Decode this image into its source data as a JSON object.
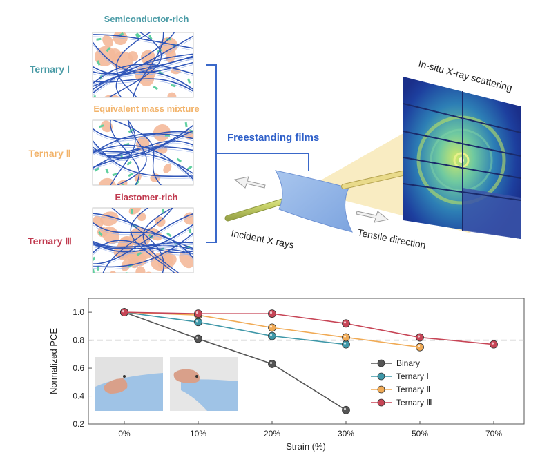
{
  "schematic": {
    "regime_labels": [
      "Semiconductor-rich",
      "Equivalent mass mixture",
      "Elastomer-rich"
    ],
    "ternary_labels": [
      "Ternary Ⅰ",
      "Ternary Ⅱ",
      "Ternary Ⅲ"
    ],
    "films_label": "Freestanding films",
    "xray_label": "In-situ X-ray scattering",
    "incident_label": "Incident X rays",
    "tensile_label": "Tensile direction",
    "colors": {
      "teal": "#4a9ba6",
      "orange": "#f2b36a",
      "red": "#c0394e",
      "blue": "#2e5fc9"
    }
  },
  "chart_data": {
    "type": "line",
    "categories": [
      "0%",
      "10%",
      "20%",
      "30%",
      "50%",
      "70%"
    ],
    "xlabel": "Strain (%)",
    "ylabel": "Normalized PCE",
    "ylim": [
      0.2,
      1.05
    ],
    "yticks": [
      "0.2",
      "0.4",
      "0.6",
      "0.8",
      "1.0"
    ],
    "reference_line": 0.8,
    "legend_placement": "lower-right",
    "series": [
      {
        "name": "Binary",
        "color": "#555555",
        "values": [
          1.0,
          0.81,
          0.63,
          0.3,
          null,
          null
        ]
      },
      {
        "name": "Ternary Ⅰ",
        "color": "#3e97a8",
        "values": [
          1.0,
          0.93,
          0.83,
          0.77,
          null,
          null
        ]
      },
      {
        "name": "Ternary Ⅱ",
        "color": "#f0aa55",
        "values": [
          1.0,
          0.98,
          0.89,
          0.82,
          0.75,
          null
        ]
      },
      {
        "name": "Ternary Ⅲ",
        "color": "#c74556",
        "values": [
          1.0,
          0.99,
          0.99,
          0.92,
          0.82,
          0.77
        ]
      }
    ]
  }
}
